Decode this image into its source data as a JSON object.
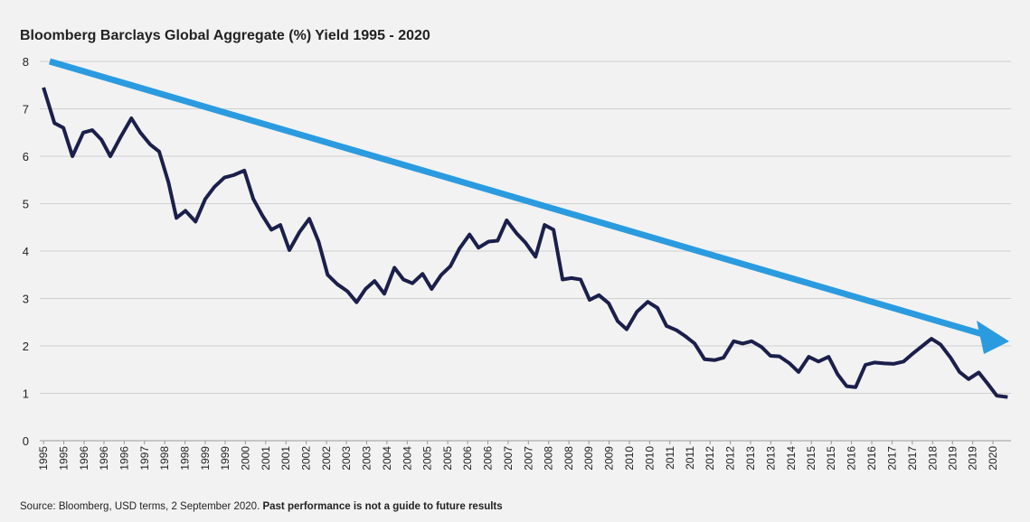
{
  "chart_data": {
    "type": "line",
    "title": "Bloomberg Barclays Global Aggregate (%) Yield 1995 - 2020",
    "source": "Source: Bloomberg, USD terms, 2 September 2020.",
    "disclaimer": "Past performance is not a guide to future results",
    "x": [
      1995.0,
      1995.29,
      1995.53,
      1995.77,
      1996.06,
      1996.3,
      1996.54,
      1996.78,
      1997.05,
      1997.34,
      1997.58,
      1997.84,
      1998.08,
      1998.33,
      1998.54,
      1998.78,
      1999.05,
      1999.31,
      1999.55,
      1999.82,
      2000.06,
      2000.35,
      2000.59,
      2000.83,
      2001.07,
      2001.31,
      2001.55,
      2001.82,
      2002.08,
      2002.33,
      2002.57,
      2002.83,
      2003.1,
      2003.34,
      2003.58,
      2003.82,
      2004.08,
      2004.35,
      2004.59,
      2004.83,
      2005.1,
      2005.34,
      2005.6,
      2005.84,
      2006.08,
      2006.35,
      2006.59,
      2006.86,
      2007.1,
      2007.34,
      2007.6,
      2007.84,
      2008.11,
      2008.35,
      2008.59,
      2008.83,
      2009.07,
      2009.31,
      2009.55,
      2009.8,
      2010.06,
      2010.3,
      2010.54,
      2010.81,
      2011.1,
      2011.36,
      2011.6,
      2011.87,
      2012.11,
      2012.35,
      2012.61,
      2012.88,
      2013.12,
      2013.39,
      2013.63,
      2013.87,
      2014.13,
      2014.37,
      2014.61,
      2014.88,
      2015.12,
      2015.39,
      2015.65,
      2015.92,
      2016.16,
      2016.4,
      2016.64,
      2016.9,
      2017.14,
      2017.41,
      2017.65,
      2017.92,
      2018.18,
      2018.42,
      2018.66,
      2018.9,
      2019.17,
      2019.41,
      2019.65,
      2019.92,
      2020.16,
      2020.4,
      2020.69
    ],
    "series": [
      {
        "name": "Yield",
        "color": "#1b1f4b",
        "values": [
          7.45,
          6.7,
          6.6,
          6.0,
          6.5,
          6.55,
          6.35,
          6.0,
          6.4,
          6.8,
          6.5,
          6.25,
          6.1,
          5.45,
          4.7,
          4.85,
          4.62,
          5.1,
          5.35,
          5.55,
          5.6,
          5.7,
          5.1,
          4.75,
          4.45,
          4.55,
          4.02,
          4.4,
          4.68,
          4.2,
          3.5,
          3.3,
          3.15,
          2.92,
          3.2,
          3.37,
          3.1,
          3.65,
          3.4,
          3.32,
          3.52,
          3.2,
          3.5,
          3.68,
          4.05,
          4.35,
          4.07,
          4.2,
          4.22,
          4.65,
          4.38,
          4.18,
          3.88,
          4.55,
          4.45,
          3.4,
          3.43,
          3.4,
          2.97,
          3.07,
          2.9,
          2.52,
          2.35,
          2.72,
          2.93,
          2.8,
          2.42,
          2.33,
          2.2,
          2.05,
          1.72,
          1.7,
          1.75,
          2.1,
          2.05,
          2.1,
          1.98,
          1.79,
          1.78,
          1.63,
          1.45,
          1.77,
          1.67,
          1.77,
          1.4,
          1.15,
          1.13,
          1.6,
          1.65,
          1.63,
          1.62,
          1.67,
          1.85,
          2.0,
          2.15,
          2.03,
          1.75,
          1.45,
          1.3,
          1.44,
          1.2,
          0.95,
          0.92
        ]
      }
    ],
    "xlim": [
      1994.9,
      2020.78
    ],
    "xticks": [
      {
        "value": 1995.0,
        "label": "1995"
      },
      {
        "value": 1995.54,
        "label": "1995"
      },
      {
        "value": 1996.08,
        "label": "1996"
      },
      {
        "value": 1996.61,
        "label": "1996"
      },
      {
        "value": 1997.15,
        "label": "1996"
      },
      {
        "value": 1997.69,
        "label": "1997"
      },
      {
        "value": 1998.23,
        "label": "1998"
      },
      {
        "value": 1998.77,
        "label": "1998"
      },
      {
        "value": 1999.31,
        "label": "1999"
      },
      {
        "value": 1999.84,
        "label": "1999"
      },
      {
        "value": 2000.38,
        "label": "2000"
      },
      {
        "value": 2000.92,
        "label": "2001"
      },
      {
        "value": 2001.46,
        "label": "2001"
      },
      {
        "value": 2002.0,
        "label": "2002"
      },
      {
        "value": 2002.54,
        "label": "2002"
      },
      {
        "value": 2003.07,
        "label": "2003"
      },
      {
        "value": 2003.61,
        "label": "2003"
      },
      {
        "value": 2004.15,
        "label": "2004"
      },
      {
        "value": 2004.69,
        "label": "2004"
      },
      {
        "value": 2005.23,
        "label": "2005"
      },
      {
        "value": 2005.77,
        "label": "2005"
      },
      {
        "value": 2006.3,
        "label": "2006"
      },
      {
        "value": 2006.84,
        "label": "2006"
      },
      {
        "value": 2007.38,
        "label": "2007"
      },
      {
        "value": 2007.92,
        "label": "2007"
      },
      {
        "value": 2008.46,
        "label": "2008"
      },
      {
        "value": 2009.0,
        "label": "2008"
      },
      {
        "value": 2009.53,
        "label": "2009"
      },
      {
        "value": 2010.07,
        "label": "2009"
      },
      {
        "value": 2010.61,
        "label": "2010"
      },
      {
        "value": 2011.15,
        "label": "2010"
      },
      {
        "value": 2011.69,
        "label": "2011"
      },
      {
        "value": 2012.23,
        "label": "2011"
      },
      {
        "value": 2012.76,
        "label": "2012"
      },
      {
        "value": 2013.3,
        "label": "2012"
      },
      {
        "value": 2013.84,
        "label": "2013"
      },
      {
        "value": 2014.38,
        "label": "2013"
      },
      {
        "value": 2014.92,
        "label": "2014"
      },
      {
        "value": 2015.46,
        "label": "2015"
      },
      {
        "value": 2015.99,
        "label": "2015"
      },
      {
        "value": 2016.53,
        "label": "2016"
      },
      {
        "value": 2017.07,
        "label": "2016"
      },
      {
        "value": 2017.61,
        "label": "2017"
      },
      {
        "value": 2018.15,
        "label": "2017"
      },
      {
        "value": 2018.69,
        "label": "2018"
      },
      {
        "value": 2019.22,
        "label": "2019"
      },
      {
        "value": 2019.76,
        "label": "2019"
      },
      {
        "value": 2020.3,
        "label": "2020"
      }
    ],
    "ylim": [
      0,
      8
    ],
    "yticks": [
      0,
      1,
      2,
      3,
      4,
      5,
      6,
      7,
      8
    ],
    "grid": true
  }
}
